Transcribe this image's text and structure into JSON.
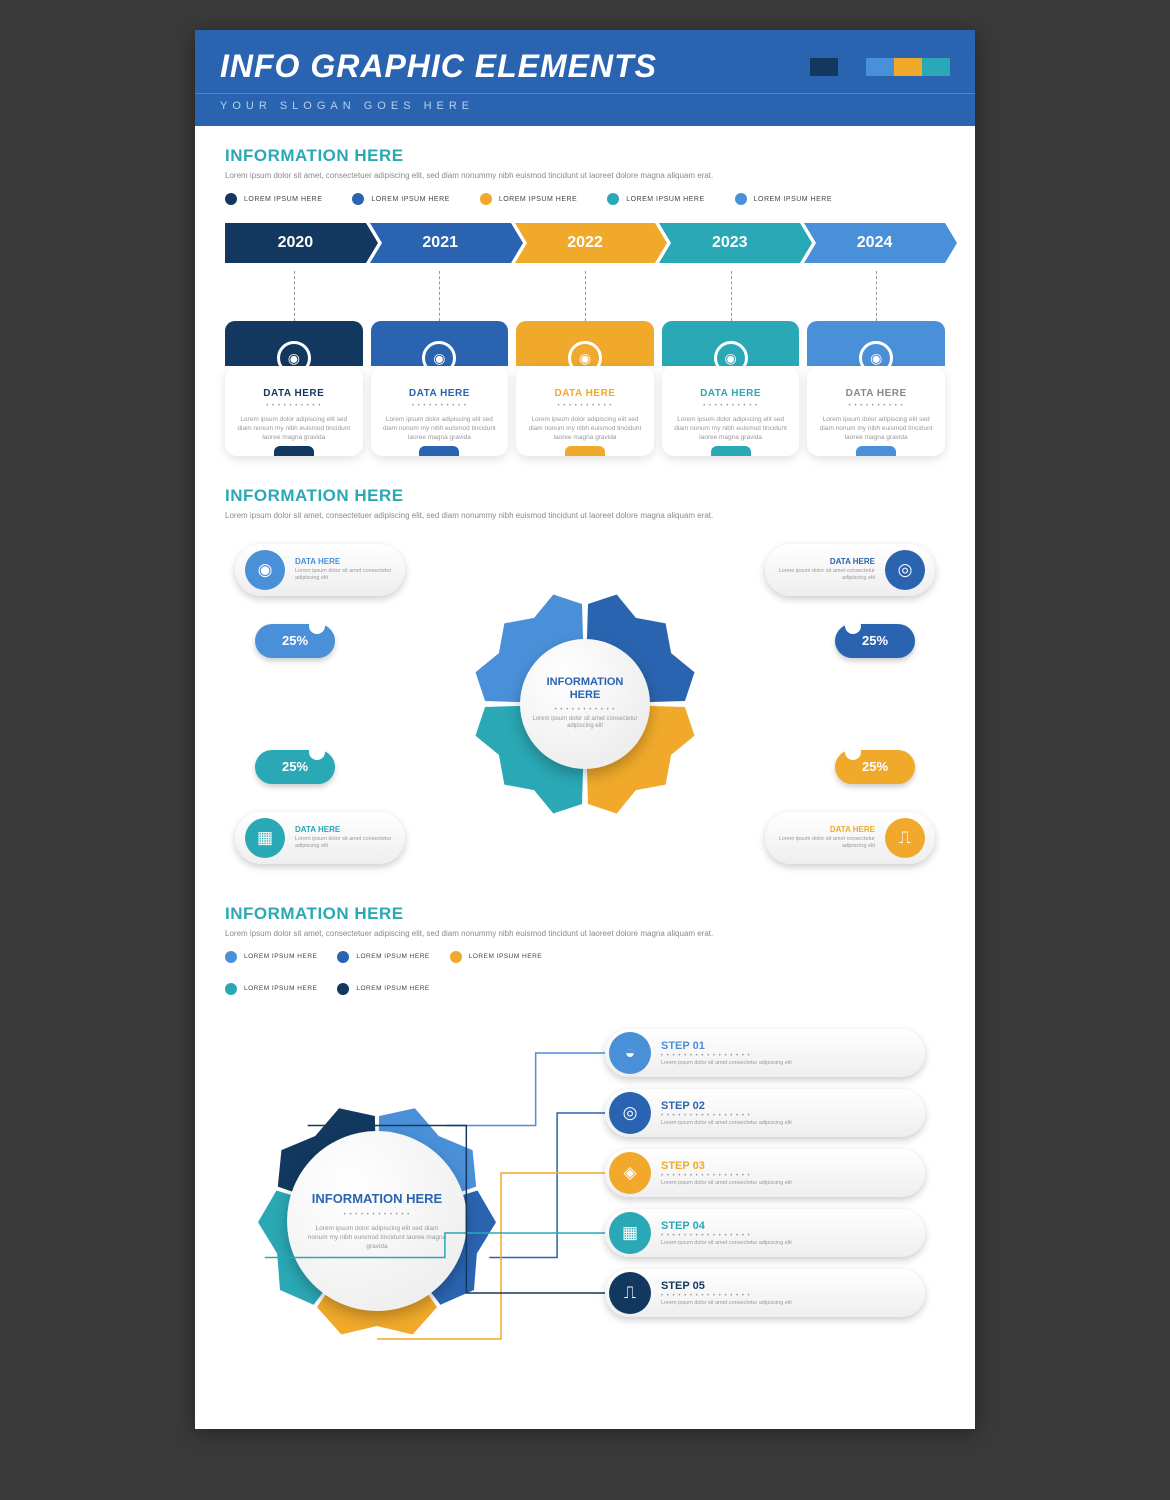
{
  "colors": {
    "navy": "#13385f",
    "blue": "#2a64b0",
    "yellow": "#f0a92a",
    "teal": "#2aa8b5",
    "lightblue": "#4a90d9",
    "bg": "#ffffff",
    "text_muted": "#8a8a8a"
  },
  "header": {
    "title": "INFO GRAPHIC ELEMENTS",
    "slogan": "YOUR SLOGAN GOES HERE",
    "swatch_colors": [
      "#13385f",
      "#2a64b0",
      "#4a90d9",
      "#f0a92a",
      "#2aa8b5"
    ]
  },
  "lorem_short": "Lorem ipsum dolor sit amet, consectetuer adipiscing elit, sed diam nonummy nibh euismod tincidunt ut laoreet dolore magna aliquam erat.",
  "lorem_card": "Lorem ipsum dolor adipiscing elit sed diam nonum my nibh euismod tincidunt laoree magna gravida",
  "lorem_tiny": "Lorem ipsum dolor sit amet consectetur adipiscing elit",
  "section1": {
    "title": "INFORMATION HERE",
    "legend": [
      {
        "color": "#13385f",
        "label": "LOREM IPSUM HERE"
      },
      {
        "color": "#2a64b0",
        "label": "LOREM IPSUM HERE"
      },
      {
        "color": "#f0a92a",
        "label": "LOREM IPSUM HERE"
      },
      {
        "color": "#2aa8b5",
        "label": "LOREM IPSUM HERE"
      },
      {
        "color": "#4a90d9",
        "label": "LOREM IPSUM HERE"
      }
    ],
    "years": [
      {
        "year": "2020",
        "color": "#13385f",
        "data_label": "DATA HERE",
        "title_color": "#13385f"
      },
      {
        "year": "2021",
        "color": "#2a64b0",
        "data_label": "DATA HERE",
        "title_color": "#2a64b0"
      },
      {
        "year": "2022",
        "color": "#f0a92a",
        "data_label": "DATA HERE",
        "title_color": "#f0a92a"
      },
      {
        "year": "2023",
        "color": "#2aa8b5",
        "data_label": "DATA HERE",
        "title_color": "#2aa8b5"
      },
      {
        "year": "2024",
        "color": "#4a90d9",
        "data_label": "DATA HERE",
        "title_color": "#888"
      }
    ]
  },
  "section2": {
    "title": "INFORMATION HERE",
    "center_title": "INFORMATION HERE",
    "gear_colors": [
      "#4a90d9",
      "#2a64b0",
      "#f0a92a",
      "#2aa8b5"
    ],
    "callouts": [
      {
        "pos": "tl",
        "color": "#4a90d9",
        "label": "DATA HERE",
        "pct": "25%",
        "icon": "◉"
      },
      {
        "pos": "tr",
        "color": "#2a64b0",
        "label": "DATA HERE",
        "pct": "25%",
        "icon": "◎"
      },
      {
        "pos": "bl",
        "color": "#2aa8b5",
        "label": "DATA HERE",
        "pct": "25%",
        "icon": "▦"
      },
      {
        "pos": "br",
        "color": "#f0a92a",
        "label": "DATA HERE",
        "pct": "25%",
        "icon": "⎍"
      }
    ]
  },
  "section3": {
    "title": "INFORMATION HERE",
    "center_title": "INFORMATION HERE",
    "gear_colors": [
      "#4a90d9",
      "#2a64b0",
      "#f0a92a",
      "#2aa8b5",
      "#13385f"
    ],
    "legend": [
      {
        "color": "#4a90d9",
        "label": "LOREM IPSUM HERE"
      },
      {
        "color": "#2a64b0",
        "label": "LOREM IPSUM HERE"
      },
      {
        "color": "#f0a92a",
        "label": "LOREM IPSUM HERE"
      },
      {
        "color": "#2aa8b5",
        "label": "LOREM IPSUM HERE"
      },
      {
        "color": "#13385f",
        "label": "LOREM IPSUM HERE"
      }
    ],
    "steps": [
      {
        "label": "STEP 01",
        "color": "#4a90d9",
        "icon": "◒"
      },
      {
        "label": "STEP 02",
        "color": "#2a64b0",
        "icon": "◎"
      },
      {
        "label": "STEP 03",
        "color": "#f0a92a",
        "icon": "◈"
      },
      {
        "label": "STEP 04",
        "color": "#2aa8b5",
        "icon": "▦"
      },
      {
        "label": "STEP 05",
        "color": "#13385f",
        "icon": "⎍"
      }
    ]
  }
}
